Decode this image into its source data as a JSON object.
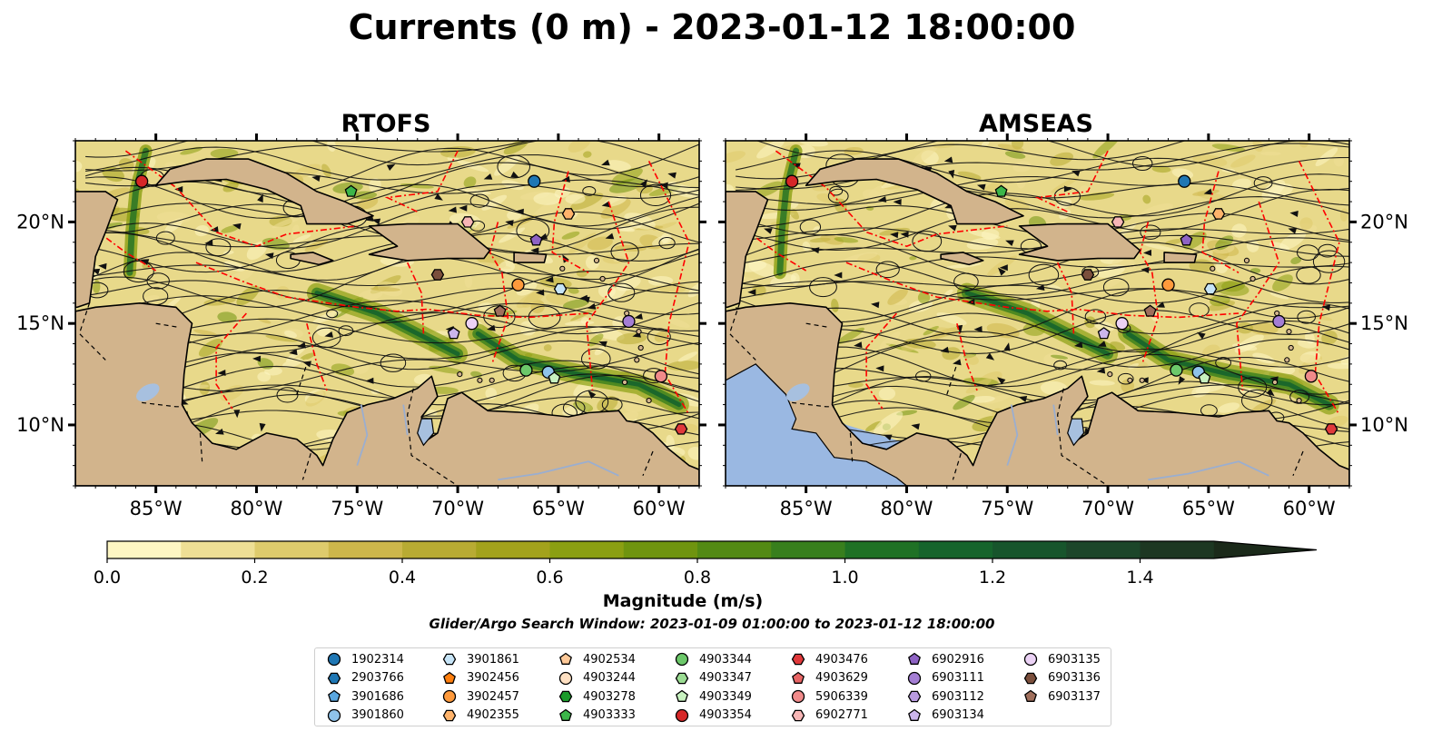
{
  "figure": {
    "title": "Currents (0 m) - 2023-01-12 18:00:00",
    "search_window": "Glider/Argo Search Window: 2023-01-09 01:00:00 to 2023-01-12 18:00:00"
  },
  "colors": {
    "land": "#d2b48c",
    "ocean_outside": "#9ab8e2",
    "eez": "#ff0000",
    "lake": "#a7c0df"
  },
  "chart_data": [
    {
      "type": "heatmap",
      "title": "RTOFS",
      "variable": "current magnitude with streamlines",
      "x_ticks": [
        "85°W",
        "80°W",
        "75°W",
        "70°W",
        "65°W",
        "60°W"
      ],
      "y_ticks": [
        "20°N",
        "15°N",
        "10°N"
      ],
      "xlim": [
        -89,
        -58
      ],
      "ylim": [
        7,
        24
      ],
      "y_axis_side": "left",
      "outside_domain_is_land": true,
      "grid": false
    },
    {
      "type": "heatmap",
      "title": "AMSEAS",
      "variable": "current magnitude with streamlines",
      "x_ticks": [
        "85°W",
        "80°W",
        "75°W",
        "70°W",
        "65°W",
        "60°W"
      ],
      "y_ticks": [
        "20°N",
        "15°N",
        "10°N"
      ],
      "xlim": [
        -89,
        -58
      ],
      "ylim": [
        7,
        24
      ],
      "y_axis_side": "right",
      "outside_domain_is_land": false,
      "grid": false
    }
  ],
  "colorbar": {
    "label": "Magnitude (m/s)",
    "ticks": [
      "0.0",
      "0.2",
      "0.4",
      "0.6",
      "0.8",
      "1.0",
      "1.2",
      "1.4"
    ],
    "tick_values": [
      0.0,
      0.2,
      0.4,
      0.6,
      0.8,
      1.0,
      1.2,
      1.4
    ],
    "range": [
      0.0,
      1.6
    ],
    "extend": "max",
    "bins": [
      "#fdf6c3",
      "#eedf95",
      "#decb6c",
      "#cdb74b",
      "#b8ab33",
      "#a3a21c",
      "#8b9f12",
      "#6f940f",
      "#538a14",
      "#387f1d",
      "#1f7125",
      "#16642c",
      "#17552c",
      "#1c462a",
      "#1d3722",
      "#1b2a1a"
    ]
  },
  "floats": [
    {
      "id": "1902314",
      "marker": "circle",
      "color": "#1f77b4",
      "lon": -66.2,
      "lat": 22.0
    },
    {
      "id": "2903766",
      "marker": "hexagon",
      "color": "#1f77b4",
      "lon": null,
      "lat": null
    },
    {
      "id": "3901686",
      "marker": "pentagon",
      "color": "#5aa7e0",
      "lon": null,
      "lat": null
    },
    {
      "id": "3901860",
      "marker": "circle",
      "color": "#8fc3ea",
      "lon": -65.5,
      "lat": 12.6
    },
    {
      "id": "3901861",
      "marker": "hexagon",
      "color": "#c6e4f7",
      "lon": -64.9,
      "lat": 16.7
    },
    {
      "id": "3902456",
      "marker": "pentagon",
      "color": "#ff7f0e",
      "lon": null,
      "lat": null
    },
    {
      "id": "3902457",
      "marker": "circle",
      "color": "#ff9a3c",
      "lon": -67.0,
      "lat": 16.9
    },
    {
      "id": "4902355",
      "marker": "hexagon",
      "color": "#ffb36b",
      "lon": -64.5,
      "lat": 20.4
    },
    {
      "id": "4902534",
      "marker": "pentagon",
      "color": "#ffc998",
      "lon": null,
      "lat": null
    },
    {
      "id": "4903244",
      "marker": "circle",
      "color": "#ffe0c2",
      "lon": null,
      "lat": null
    },
    {
      "id": "4903278",
      "marker": "hexagon",
      "color": "#1a9a2a",
      "lon": null,
      "lat": null
    },
    {
      "id": "4903333",
      "marker": "pentagon",
      "color": "#3cb64a",
      "lon": -75.3,
      "lat": 21.5
    },
    {
      "id": "4903344",
      "marker": "circle",
      "color": "#6cc86a",
      "lon": -66.6,
      "lat": 12.7
    },
    {
      "id": "4903347",
      "marker": "hexagon",
      "color": "#9bdc93",
      "lon": null,
      "lat": null
    },
    {
      "id": "4903349",
      "marker": "pentagon",
      "color": "#c8f2c0",
      "lon": -65.2,
      "lat": 12.3
    },
    {
      "id": "4903354",
      "marker": "circle",
      "color": "#d62728",
      "lon": -85.7,
      "lat": 22.0
    },
    {
      "id": "4903476",
      "marker": "hexagon",
      "color": "#e0393b",
      "lon": -58.9,
      "lat": 9.8
    },
    {
      "id": "4903629",
      "marker": "pentagon",
      "color": "#e86565",
      "lon": null,
      "lat": null
    },
    {
      "id": "5906339",
      "marker": "circle",
      "color": "#f08a8a",
      "lon": -59.9,
      "lat": 12.4
    },
    {
      "id": "6902771",
      "marker": "hexagon",
      "color": "#f7b6b6",
      "lon": -69.5,
      "lat": 20.0
    },
    {
      "id": "6902916",
      "marker": "pentagon",
      "color": "#8e63c4",
      "lon": -66.1,
      "lat": 19.1
    },
    {
      "id": "6903111",
      "marker": "circle",
      "color": "#a47ed4",
      "lon": -61.5,
      "lat": 15.1
    },
    {
      "id": "6903112",
      "marker": "hexagon",
      "color": "#b99be0",
      "lon": null,
      "lat": null
    },
    {
      "id": "6903134",
      "marker": "pentagon",
      "color": "#cbb5ec",
      "lon": -70.2,
      "lat": 14.5
    },
    {
      "id": "6903135",
      "marker": "circle",
      "color": "#ebd2f5",
      "lon": -69.3,
      "lat": 15.0
    },
    {
      "id": "6903136",
      "marker": "hexagon",
      "color": "#7b4f3c",
      "lon": -71.0,
      "lat": 17.4
    },
    {
      "id": "6903137",
      "marker": "pentagon",
      "color": "#a06f5c",
      "lon": -67.9,
      "lat": 15.6
    }
  ]
}
